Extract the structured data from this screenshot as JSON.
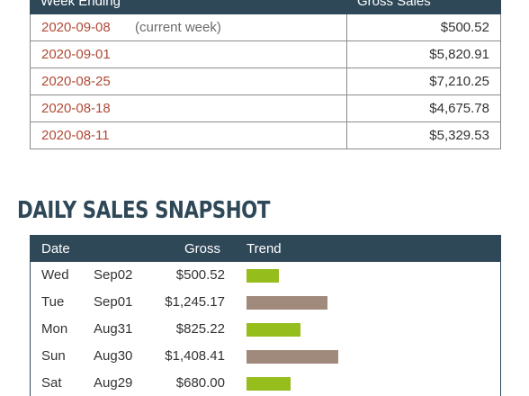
{
  "weekly": {
    "headers": {
      "week": "Week Ending",
      "gross": "Gross Sales"
    },
    "rows": [
      {
        "date": "2020-09-08",
        "note": "(current week)",
        "gross": "$500.52"
      },
      {
        "date": "2020-09-01",
        "note": "",
        "gross": "$5,820.91"
      },
      {
        "date": "2020-08-25",
        "note": "",
        "gross": "$7,210.25"
      },
      {
        "date": "2020-08-18",
        "note": "",
        "gross": "$4,675.78"
      },
      {
        "date": "2020-08-11",
        "note": "",
        "gross": "$5,329.53"
      }
    ]
  },
  "daily": {
    "title": "DAILY SALES SNAPSHOT",
    "headers": {
      "date": "Date",
      "gross": "Gross",
      "trend": "Trend"
    },
    "rows": [
      {
        "dow": "Wed",
        "day": "Sep02",
        "gross": "$500.52",
        "trend_value": 500.52,
        "bar_color": "#95bd1c"
      },
      {
        "dow": "Tue",
        "day": "Sep01",
        "gross": "$1,245.17",
        "trend_value": 1245.17,
        "bar_color": "#a08a7c"
      },
      {
        "dow": "Mon",
        "day": "Aug31",
        "gross": "$825.22",
        "trend_value": 825.22,
        "bar_color": "#95bd1c"
      },
      {
        "dow": "Sun",
        "day": "Aug30",
        "gross": "$1,408.41",
        "trend_value": 1408.41,
        "bar_color": "#a08a7c"
      },
      {
        "dow": "Sat",
        "day": "Aug29",
        "gross": "$680.00",
        "trend_value": 680.0,
        "bar_color": "#95bd1c"
      }
    ]
  },
  "colors": {
    "header_bg": "#2f4858",
    "link": "#b14a36",
    "bar_green": "#95bd1c",
    "bar_taupe": "#a08a7c"
  }
}
